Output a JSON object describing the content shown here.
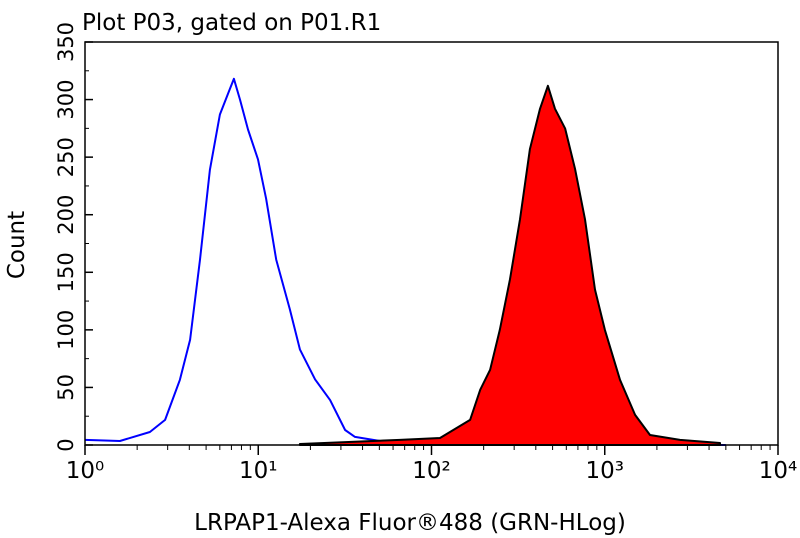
{
  "chart_data": {
    "type": "histogram-overlay",
    "title": "Plot P03, gated on P01.R1",
    "x_label": "LRPAP1-Alexa Fluor®488 (GRN-HLog)",
    "y_label": "Count",
    "xscale": "log",
    "xlim": [
      1,
      10000
    ],
    "xticks": [
      {
        "value": 1,
        "label": "10⁰"
      },
      {
        "value": 10,
        "label": "10¹"
      },
      {
        "value": 100,
        "label": "10²"
      },
      {
        "value": 1000,
        "label": "10³"
      },
      {
        "value": 10000,
        "label": "10⁴"
      }
    ],
    "ylim": [
      0,
      350
    ],
    "yticks": [
      0,
      50,
      100,
      150,
      200,
      250,
      300,
      350
    ],
    "series": [
      {
        "color": "#0000ff",
        "filled": false,
        "x": [
          1,
          1.59,
          2.37,
          2.9,
          3.53,
          4.04,
          4.61,
          5.26,
          6.01,
          6.69,
          7.24,
          7.85,
          8.73,
          9.97,
          11.1,
          12.7,
          15.2,
          17.4,
          21.3,
          26.0,
          31.7,
          36.2,
          50.4,
          86,
          248,
          5000
        ],
        "values": [
          4.4,
          3.5,
          11.3,
          21.8,
          56.6,
          91.4,
          161,
          239,
          287,
          305,
          318,
          300,
          274,
          248,
          214,
          161,
          118,
          83,
          57,
          39,
          13,
          7,
          3.5,
          1.7,
          0.9,
          0
        ]
      },
      {
        "color": "#ff0000",
        "filled": true,
        "x": [
          17.4,
          65.8,
          112,
          167,
          191,
          218,
          248,
          284,
          324,
          370,
          423,
          470,
          516,
          590,
          673,
          769,
          879,
          1002,
          1224,
          1496,
          1824,
          2717,
          4624
        ],
        "values": [
          0.9,
          4.4,
          6.1,
          21.8,
          47.9,
          65.3,
          100,
          144,
          196,
          257,
          292,
          312,
          292,
          275,
          240,
          196,
          135,
          100,
          56.6,
          26.1,
          8.7,
          4.4,
          1.7
        ]
      }
    ]
  }
}
